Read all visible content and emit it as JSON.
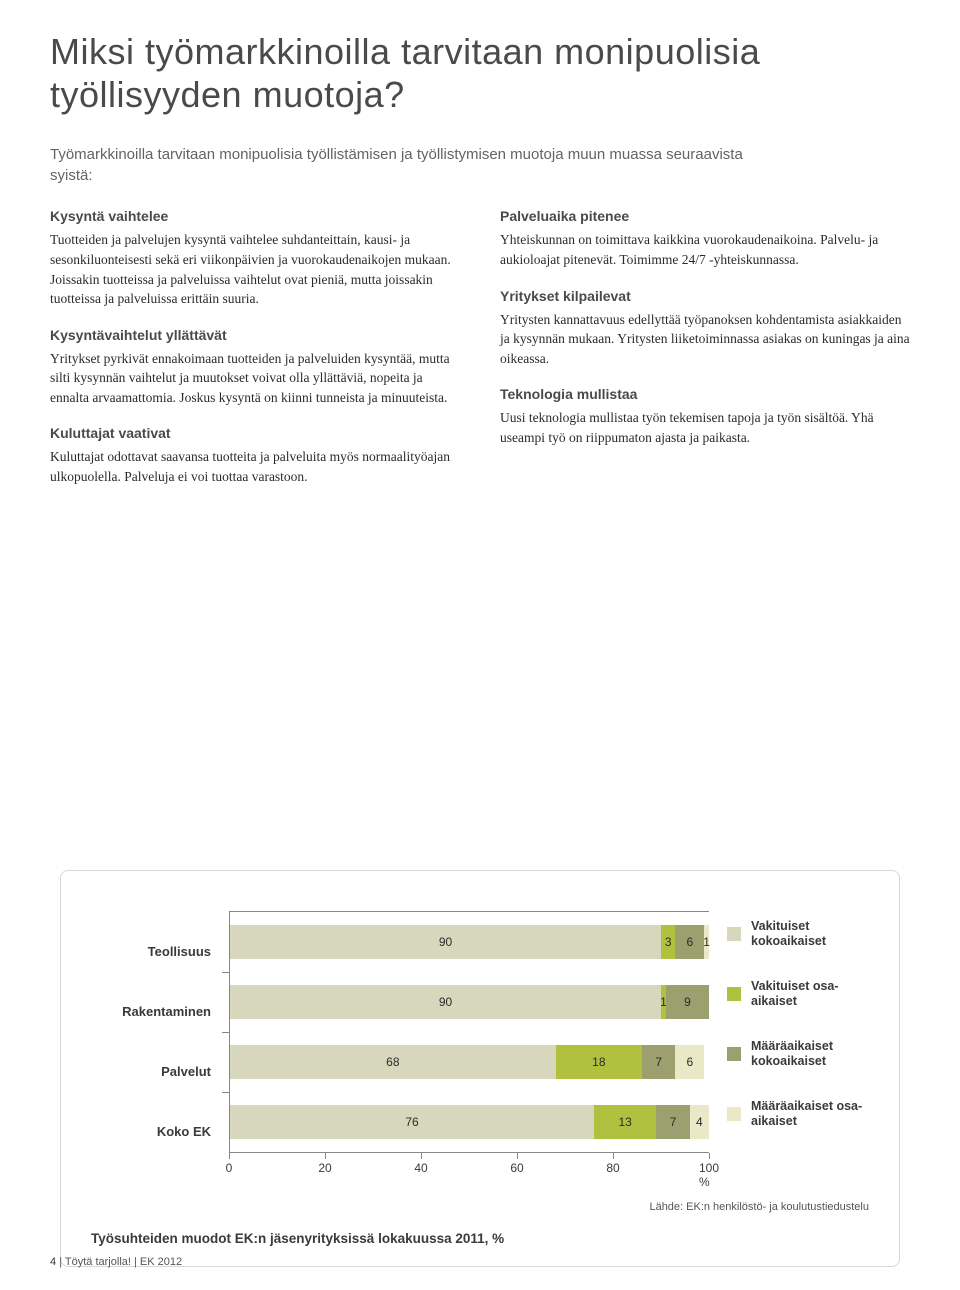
{
  "title": "Miksi työmarkkinoilla tarvitaan monipuolisia työllisyyden muotoja?",
  "intro": "Työmarkkinoilla tarvitaan monipuolisia työllistämisen ja työllistymisen muotoja muun muassa seuraavista syistä:",
  "left": {
    "h1": "Kysyntä vaihtelee",
    "p1": "Tuotteiden ja palvelujen kysyntä vaihtelee suhdanteittain, kausi- ja sesonkiluonteisesti sekä eri viikonpäivien ja vuorokaudenaikojen mukaan. Joissakin tuotteissa ja palveluissa vaihtelut ovat pieniä, mutta joissakin tuotteissa ja palveluissa erittäin suuria.",
    "h2": "Kysyntävaihtelut yllättävät",
    "p2": "Yritykset pyrkivät ennakoimaan tuotteiden ja palveluiden kysyntää, mutta silti kysynnän vaihtelut ja muutokset voivat olla yllättäviä, nopeita ja ennalta arvaamattomia. Joskus kysyntä on kiinni tunneista ja minuuteista.",
    "h3": "Kuluttajat vaativat",
    "p3": "Kuluttajat odottavat saavansa tuotteita ja palveluita myös normaalityöajan ulkopuolella. Palveluja ei voi tuottaa varastoon."
  },
  "right": {
    "h1": "Palveluaika pitenee",
    "p1": "Yhteiskunnan on toimittava kaikkina vuorokaudenaikoina. Palvelu- ja aukioloajat pitenevät. Toimimme 24/7 -yhteiskunnassa.",
    "h2": "Yritykset kilpailevat",
    "p2": "Yritysten kannattavuus edellyttää työpanoksen kohdentamista asiakkaiden ja kysynnän mukaan. Yritysten liiketoiminnassa asiakas on kuningas ja aina oikeassa.",
    "h3": "Teknologia mullistaa",
    "p3": "Uusi teknologia mullistaa työn tekemisen tapoja ja työn sisältöä. Yhä useampi työ on riippumaton ajasta ja paikasta."
  },
  "chart": {
    "categories": [
      "Teollisuus",
      "Rakentaminen",
      "Palvelut",
      "Koko EK"
    ],
    "series": [
      [
        90,
        3,
        6,
        1
      ],
      [
        90,
        1,
        9,
        0
      ],
      [
        68,
        18,
        7,
        6
      ],
      [
        76,
        13,
        7,
        4
      ]
    ],
    "colors": [
      "#d7d7bd",
      "#b0c03f",
      "#9ba06e",
      "#e9e9c7"
    ],
    "xlim": [
      0,
      100
    ],
    "xtick_step": 20,
    "xticks": [
      0,
      20,
      40,
      60,
      80,
      100
    ],
    "xunit": "%",
    "legend": [
      "Vakituiset kokoaikaiset",
      "Vakituiset osa-aikaiset",
      "Määräaikaiset kokoaikaiset",
      "Määräaikaiset osa-aikaiset"
    ]
  },
  "source": "Lähde: EK:n henkilöstö- ja koulutustiedustelu",
  "chart_title": "Työsuhteiden muodot EK:n jäsenyrityksissä lokakuussa 2011, %",
  "footer": {
    "page": "4",
    "text": "Töytä tarjolla! | EK 2012"
  }
}
